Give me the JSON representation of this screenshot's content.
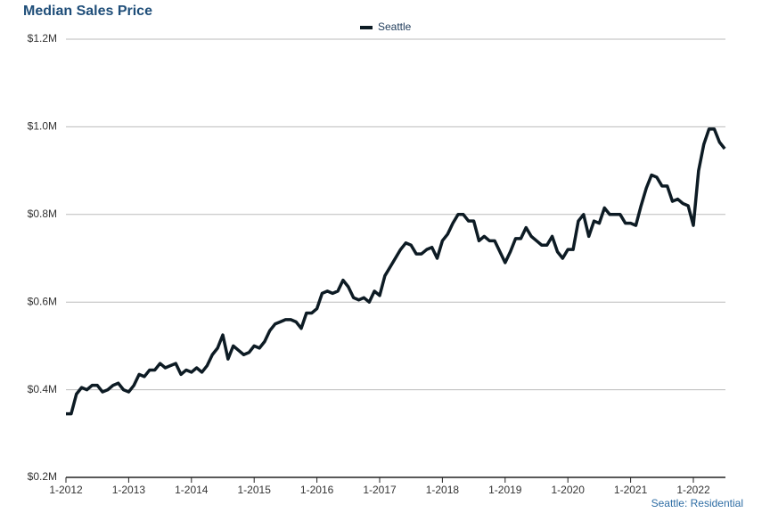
{
  "chart_data": {
    "type": "line",
    "title": "Median Sales Price",
    "footer": "Seattle: Residential",
    "categories": [
      "1-2012",
      null,
      null,
      null,
      null,
      null,
      null,
      null,
      null,
      null,
      null,
      null,
      "1-2013",
      null,
      null,
      null,
      null,
      null,
      null,
      null,
      null,
      null,
      null,
      null,
      "1-2014",
      null,
      null,
      null,
      null,
      null,
      null,
      null,
      null,
      null,
      null,
      null,
      "1-2015",
      null,
      null,
      null,
      null,
      null,
      null,
      null,
      null,
      null,
      null,
      null,
      "1-2016",
      null,
      null,
      null,
      null,
      null,
      null,
      null,
      null,
      null,
      null,
      null,
      "1-2017",
      null,
      null,
      null,
      null,
      null,
      null,
      null,
      null,
      null,
      null,
      null,
      "1-2018",
      null,
      null,
      null,
      null,
      null,
      null,
      null,
      null,
      null,
      null,
      null,
      "1-2019",
      null,
      null,
      null,
      null,
      null,
      null,
      null,
      null,
      null,
      null,
      null,
      "1-2020",
      null,
      null,
      null,
      null,
      null,
      null,
      null,
      null,
      null,
      null,
      null,
      "1-2021",
      null,
      null,
      null,
      null,
      null,
      null,
      null,
      null,
      null,
      null,
      null,
      "1-2022",
      null,
      null,
      null,
      null,
      null,
      null
    ],
    "series": [
      {
        "name": "Seattle",
        "color": "#0d1b24",
        "values": [
          345000,
          345000,
          390000,
          405000,
          400000,
          410000,
          410000,
          395000,
          400000,
          410000,
          415000,
          400000,
          395000,
          410000,
          435000,
          430000,
          445000,
          445000,
          460000,
          450000,
          455000,
          460000,
          435000,
          445000,
          440000,
          450000,
          440000,
          455000,
          480000,
          495000,
          525000,
          470000,
          500000,
          490000,
          480000,
          485000,
          500000,
          495000,
          510000,
          535000,
          550000,
          555000,
          560000,
          560000,
          555000,
          540000,
          575000,
          575000,
          585000,
          620000,
          625000,
          620000,
          625000,
          650000,
          635000,
          610000,
          605000,
          610000,
          600000,
          625000,
          615000,
          660000,
          680000,
          700000,
          720000,
          735000,
          730000,
          710000,
          710000,
          720000,
          725000,
          700000,
          740000,
          755000,
          780000,
          800000,
          800000,
          785000,
          785000,
          740000,
          750000,
          740000,
          740000,
          715000,
          690000,
          715000,
          745000,
          745000,
          770000,
          750000,
          740000,
          730000,
          730000,
          750000,
          715000,
          700000,
          720000,
          720000,
          785000,
          800000,
          750000,
          785000,
          780000,
          815000,
          800000,
          800000,
          800000,
          780000,
          780000,
          775000,
          820000,
          860000,
          890000,
          885000,
          865000,
          865000,
          830000,
          835000,
          825000,
          820000,
          775000,
          900000,
          960000,
          995000,
          995000,
          965000,
          950000
        ]
      }
    ],
    "ylim": [
      200000,
      1200000
    ],
    "yticks": [
      {
        "value": 200000,
        "label": "$0.2M"
      },
      {
        "value": 400000,
        "label": "$0.4M"
      },
      {
        "value": 600000,
        "label": "$0.6M"
      },
      {
        "value": 800000,
        "label": "$0.8M"
      },
      {
        "value": 1000000,
        "label": "$1.0M"
      },
      {
        "value": 1200000,
        "label": "$1.2M"
      }
    ],
    "grid": true
  }
}
